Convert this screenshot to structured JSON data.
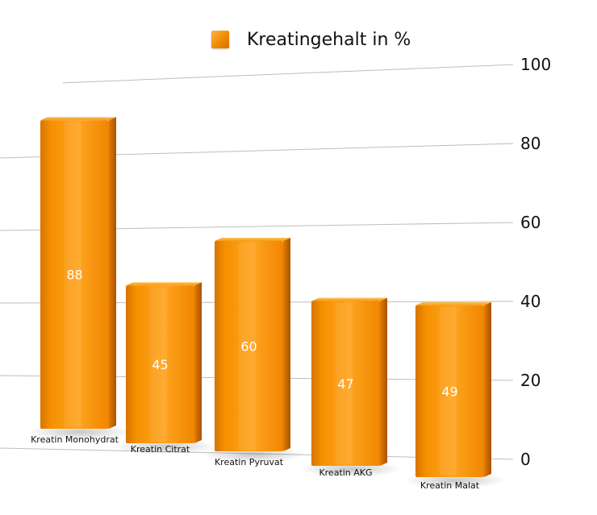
{
  "colors": {
    "bar_front": "#f59200",
    "bar_light": "#ffb43f",
    "bar_dark": "#c86400",
    "grid": "#bdbdbd"
  },
  "chart_data": {
    "type": "bar",
    "categories": [
      "Kreatin Monohydrat",
      "Kreatin Citrat",
      "Kreatin Pyruvat",
      "Kreatin AKG",
      "Kreatin Malat"
    ],
    "series": [
      {
        "name": "Kreatingehalt in %",
        "values": [
          88,
          45,
          60,
          47,
          49
        ]
      }
    ],
    "ylim": [
      0,
      100
    ],
    "yticks": [
      "0",
      "20",
      "40",
      "60",
      "80",
      "100"
    ],
    "grid": true,
    "legend": "top",
    "perspective": "3d"
  }
}
